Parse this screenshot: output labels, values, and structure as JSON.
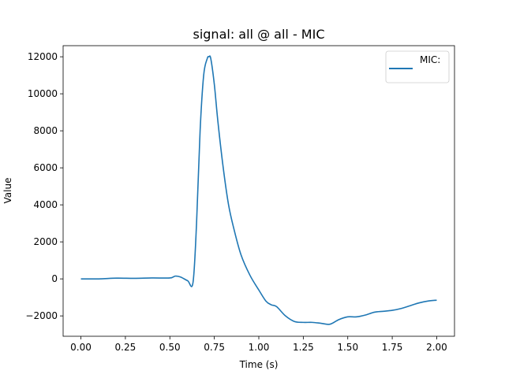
{
  "chart_data": {
    "type": "line",
    "title": "signal: all @ all - MIC",
    "xlabel": "Time (s)",
    "ylabel": "Value",
    "xlim": [
      -0.1,
      2.1
    ],
    "ylim": [
      -3100,
      12600
    ],
    "x_ticks": [
      0.0,
      0.25,
      0.5,
      0.75,
      1.0,
      1.25,
      1.5,
      1.75,
      2.0
    ],
    "x_tick_labels": [
      "0.00",
      "0.25",
      "0.50",
      "0.75",
      "1.00",
      "1.25",
      "1.50",
      "1.75",
      "2.00"
    ],
    "y_ticks": [
      -2000,
      0,
      2000,
      4000,
      6000,
      8000,
      10000,
      12000
    ],
    "y_tick_labels": [
      "−2000",
      "0",
      "2000",
      "4000",
      "6000",
      "8000",
      "10000",
      "12000"
    ],
    "grid": false,
    "legend_position": "top-right",
    "series": [
      {
        "name": "MIC:",
        "color": "#1f77b4",
        "x": [
          0.0,
          0.1,
          0.2,
          0.3,
          0.4,
          0.5,
          0.53,
          0.56,
          0.6,
          0.63,
          0.65,
          0.67,
          0.69,
          0.71,
          0.72,
          0.73,
          0.75,
          0.77,
          0.8,
          0.83,
          0.86,
          0.9,
          0.95,
          1.0,
          1.04,
          1.07,
          1.1,
          1.15,
          1.2,
          1.25,
          1.3,
          1.35,
          1.4,
          1.45,
          1.5,
          1.55,
          1.6,
          1.65,
          1.7,
          1.75,
          1.8,
          1.85,
          1.9,
          1.95,
          2.0
        ],
        "y": [
          0,
          0,
          40,
          30,
          50,
          50,
          150,
          100,
          -100,
          -200,
          3000,
          8000,
          11000,
          11900,
          12000,
          11900,
          10500,
          8500,
          6000,
          4000,
          2700,
          1300,
          200,
          -600,
          -1200,
          -1400,
          -1500,
          -2000,
          -2300,
          -2350,
          -2350,
          -2400,
          -2450,
          -2200,
          -2050,
          -2050,
          -1950,
          -1800,
          -1750,
          -1700,
          -1600,
          -1450,
          -1300,
          -1200,
          -1150
        ]
      }
    ]
  }
}
